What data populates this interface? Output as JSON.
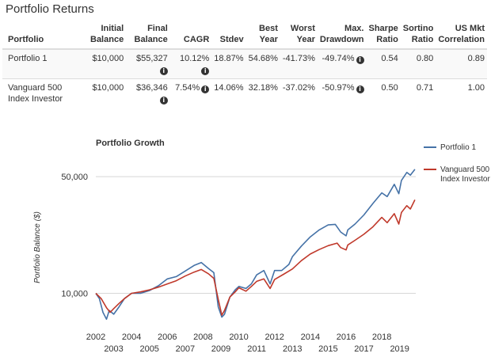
{
  "section_title": "Portfolio Returns",
  "table": {
    "headers": [
      [
        "Portfolio"
      ],
      [
        "Initial",
        "Balance"
      ],
      [
        "Final",
        "Balance"
      ],
      [
        "CAGR"
      ],
      [
        "Stdev"
      ],
      [
        "Best",
        "Year"
      ],
      [
        "Worst",
        "Year"
      ],
      [
        "Max.",
        "Drawdown"
      ],
      [
        "Sharpe",
        "Ratio"
      ],
      [
        "Sortino",
        "Ratio"
      ],
      [
        "US Mkt",
        "Correlation"
      ]
    ],
    "rows": [
      {
        "name": "Portfolio 1",
        "initial": "$10,000",
        "final": "$55,327",
        "cagr": "10.12%",
        "stdev": "18.87%",
        "best": "54.68%",
        "worst": "-41.73%",
        "maxdd": "-49.74%",
        "sharpe": "0.54",
        "sortino": "0.80",
        "corr": "0.89"
      },
      {
        "name": "Vanguard 500 Index Investor",
        "initial": "$10,000",
        "final": "$36,346",
        "cagr": "7.54%",
        "stdev": "14.06%",
        "best": "32.18%",
        "worst": "-37.02%",
        "maxdd": "-50.97%",
        "sharpe": "0.50",
        "sortino": "0.71",
        "corr": "1.00"
      }
    ]
  },
  "colors": {
    "portfolio1": "#4572a7",
    "vanguard": "#c0392b",
    "grid": "#d8d8d8",
    "text": "#333333"
  },
  "chart_data": {
    "type": "line",
    "title": "Portfolio Growth",
    "ylabel": "Portfolio Balance ($)",
    "yscale": "log",
    "ylim": [
      6500,
      68000
    ],
    "xlim": [
      2002.0,
      2019.9
    ],
    "ytick_labels": [
      "10,000",
      "50,000"
    ],
    "ytick_values": [
      10000,
      50000
    ],
    "xtick_labels_upper": [
      "2002",
      "2004",
      "2006",
      "2008",
      "2010",
      "2012",
      "2014",
      "2016",
      "2018"
    ],
    "xtick_labels_lower": [
      "2003",
      "2005",
      "2007",
      "2009",
      "2011",
      "2013",
      "2015",
      "2017",
      "2019"
    ],
    "legend_position": "top-right",
    "series": [
      {
        "name": "Portfolio 1",
        "color": "#4572a7",
        "x": [
          2002.0,
          2002.2,
          2002.4,
          2002.6,
          2002.75,
          2003.0,
          2003.3,
          2003.6,
          2004.0,
          2004.5,
          2005.0,
          2005.5,
          2006.0,
          2006.5,
          2007.0,
          2007.5,
          2007.9,
          2008.3,
          2008.6,
          2008.85,
          2009.05,
          2009.2,
          2009.5,
          2009.8,
          2010.0,
          2010.4,
          2010.7,
          2011.0,
          2011.4,
          2011.75,
          2012.0,
          2012.4,
          2012.8,
          2013.0,
          2013.5,
          2014.0,
          2014.5,
          2015.0,
          2015.4,
          2015.7,
          2016.0,
          2016.1,
          2016.5,
          2017.0,
          2017.5,
          2018.0,
          2018.3,
          2018.7,
          2018.95,
          2019.1,
          2019.4,
          2019.6,
          2019.85
        ],
        "y": [
          10000,
          9300,
          7700,
          7000,
          7900,
          7500,
          8300,
          9300,
          10000,
          10000,
          10400,
          11100,
          12200,
          12600,
          13600,
          14700,
          15300,
          14100,
          13300,
          8300,
          7200,
          7500,
          9500,
          10500,
          11000,
          10700,
          11400,
          12900,
          13700,
          11400,
          13700,
          13700,
          14900,
          16600,
          19200,
          21800,
          24000,
          25700,
          25900,
          23300,
          22100,
          24000,
          26000,
          29500,
          34500,
          40000,
          38000,
          45000,
          39500,
          47500,
          53000,
          51000,
          55327
        ]
      },
      {
        "name": "Vanguard 500 Index Investor",
        "color": "#c0392b",
        "x": [
          2002.0,
          2002.3,
          2002.6,
          2002.8,
          2003.0,
          2003.3,
          2003.6,
          2004.0,
          2004.5,
          2005.0,
          2005.5,
          2006.0,
          2006.5,
          2007.0,
          2007.5,
          2007.9,
          2008.3,
          2008.6,
          2008.85,
          2009.05,
          2009.2,
          2009.5,
          2009.8,
          2010.0,
          2010.4,
          2010.7,
          2011.0,
          2011.4,
          2011.75,
          2012.0,
          2012.5,
          2013.0,
          2013.5,
          2014.0,
          2014.5,
          2015.0,
          2015.5,
          2015.7,
          2016.0,
          2016.1,
          2016.5,
          2017.0,
          2017.5,
          2018.0,
          2018.3,
          2018.7,
          2018.95,
          2019.1,
          2019.4,
          2019.6,
          2019.85
        ],
        "y": [
          10000,
          9300,
          8200,
          7700,
          8100,
          8700,
          9300,
          10000,
          10200,
          10500,
          10900,
          11400,
          11900,
          12700,
          13400,
          13900,
          13100,
          12300,
          9200,
          7400,
          7900,
          9500,
          10200,
          10800,
          10300,
          11000,
          11800,
          12200,
          10700,
          12100,
          13000,
          14000,
          15700,
          17200,
          18300,
          19300,
          20000,
          18800,
          18200,
          19500,
          20800,
          22600,
          25000,
          28500,
          26500,
          30000,
          26000,
          30500,
          33500,
          32000,
          36346
        ]
      }
    ]
  }
}
